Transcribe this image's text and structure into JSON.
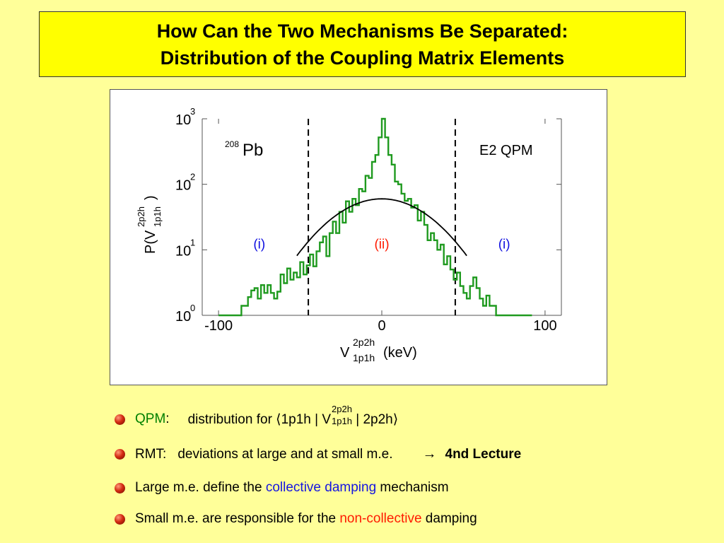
{
  "title": {
    "line1": "How Can the Two Mechanisms Be Separated:",
    "line2": "Distribution of the Coupling Matrix Elements"
  },
  "chart_data": {
    "type": "histogram",
    "nucleus_label": "208Pb",
    "nucleus_mass": "208",
    "nucleus_symbol": "Pb",
    "model_label": "E2 QPM",
    "xlabel": "V 2p2h 1p1h (keV)",
    "xlabel_parts": {
      "symbol": "V",
      "sup": "2p2h",
      "sub": "1p1h",
      "unit": "(keV)"
    },
    "ylabel": "P(V 2p2h 1p1h)",
    "ylabel_parts": {
      "prefix": "P(V",
      "sup": "2p2h",
      "sub": "1p1h",
      "suffix": ")"
    },
    "x_ticks": [
      "-100",
      "0",
      "100"
    ],
    "x_tick_values": [
      -100,
      0,
      100
    ],
    "y_ticks": [
      {
        "base": "10",
        "exp": "0",
        "value": 1
      },
      {
        "base": "10",
        "exp": "1",
        "value": 10
      },
      {
        "base": "10",
        "exp": "2",
        "value": 100
      },
      {
        "base": "10",
        "exp": "3",
        "value": 1000
      }
    ],
    "y_scale": "log",
    "xlim": [
      -110,
      110
    ],
    "ylim": [
      1,
      1000
    ],
    "vlines": [
      -45,
      45
    ],
    "region_labels": [
      {
        "text": "(i)",
        "x": -75,
        "y": 10,
        "color": "#1010e0"
      },
      {
        "text": "(ii)",
        "x": 0,
        "y": 10,
        "color": "#ff1a00"
      },
      {
        "text": "(i)",
        "x": 75,
        "y": 10,
        "color": "#1010e0"
      }
    ],
    "histogram": {
      "name": "QPM distribution",
      "color": "#1f9a1f",
      "x": [
        -100,
        -90,
        -86,
        -82,
        -80,
        -78,
        -76,
        -74,
        -72,
        -70,
        -68,
        -66,
        -64,
        -62,
        -60,
        -58,
        -56,
        -54,
        -52,
        -50,
        -48,
        -46,
        -44,
        -42,
        -40,
        -38,
        -36,
        -34,
        -32,
        -30,
        -28,
        -26,
        -24,
        -22,
        -20,
        -18,
        -16,
        -14,
        -12,
        -10,
        -8,
        -6,
        -4,
        -2,
        0,
        2,
        4,
        6,
        8,
        10,
        12,
        14,
        16,
        18,
        20,
        22,
        24,
        26,
        28,
        30,
        32,
        34,
        36,
        38,
        40,
        42,
        44,
        46,
        48,
        50,
        52,
        54,
        56,
        58,
        60,
        62,
        64,
        66,
        70,
        80,
        90
      ],
      "y": [
        1,
        1,
        1.4,
        1.9,
        2.4,
        2.6,
        1.8,
        2.9,
        2.2,
        2.9,
        2.2,
        1.8,
        2.3,
        4.2,
        3.1,
        5.2,
        3.5,
        4.5,
        3.8,
        6.5,
        4.2,
        5.8,
        8.5,
        5.6,
        9.5,
        13,
        16,
        8,
        18,
        27,
        18,
        38,
        26,
        55,
        38,
        60,
        48,
        85,
        78,
        135,
        125,
        220,
        280,
        520,
        1000,
        520,
        280,
        200,
        110,
        100,
        72,
        56,
        60,
        44,
        48,
        28,
        38,
        24,
        14,
        18,
        14,
        10,
        12,
        6,
        8,
        5,
        3.5,
        4.5,
        2.8,
        2.2,
        1.8,
        2.8,
        3.8,
        2.6,
        1.8,
        1.4,
        2,
        1.4,
        1,
        1,
        1
      ]
    },
    "fit_curve": {
      "name": "Gaussian",
      "color": "#000000",
      "amplitude": 60,
      "sigma": 26,
      "x_range": [
        -52,
        52
      ]
    }
  },
  "bullets": [
    {
      "label": "QPM",
      "colon": ":",
      "text": "distribution for ⟨1p1h | V",
      "sup": "2p2h",
      "sub": "1p1h",
      "after": " | 2p2h⟩"
    },
    {
      "label": "RMT:",
      "text": "deviations at large and at small m.e.",
      "arrow": "→",
      "emph": "4nd Lecture"
    },
    {
      "pre": "Large m.e. define the ",
      "hl": "collective damping",
      "post": " mechanism"
    },
    {
      "pre": "Small m.e. are responsible for the ",
      "hl": "non-collective",
      "post": " damping"
    }
  ],
  "colors": {
    "background": "#ffff99",
    "title_box": "#ffff00",
    "green": "#008000",
    "blue": "#1515e0",
    "red": "#ff1a00"
  }
}
